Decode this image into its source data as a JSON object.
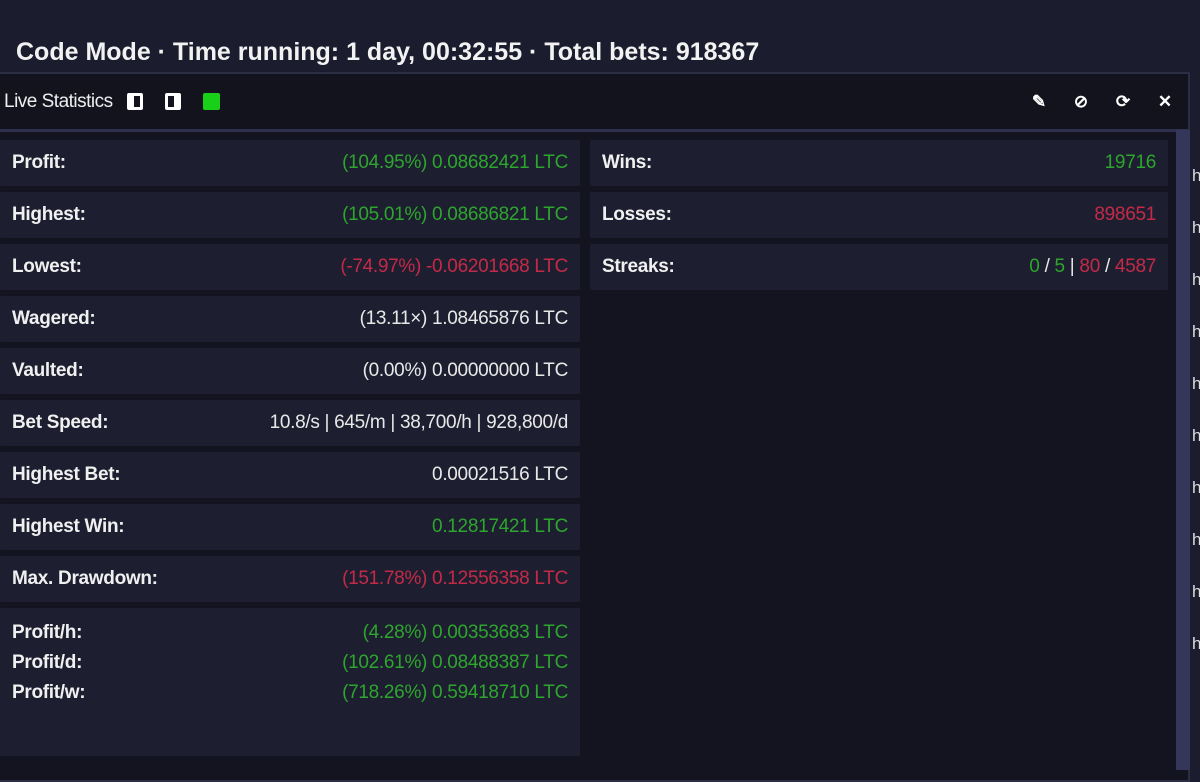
{
  "header": {
    "title": "Code Mode · Time running: 1 day, 00:32:55 · Total bets: 918367"
  },
  "panel": {
    "title": "Live Statistics",
    "status_color": "#19d019",
    "actions": [
      "edit-icon",
      "hide-icon",
      "refresh-icon",
      "close-icon"
    ]
  },
  "left": [
    {
      "label": "Profit:",
      "value": "(104.95%) 0.08682421 LTC",
      "color": "green"
    },
    {
      "label": "Highest:",
      "value": "(105.01%) 0.08686821 LTC",
      "color": "green"
    },
    {
      "label": "Lowest:",
      "value": "(-74.97%) -0.06201668 LTC",
      "color": "red"
    },
    {
      "label": "Wagered:",
      "value": "(13.11×) 1.08465876 LTC",
      "color": "white"
    },
    {
      "label": "Vaulted:",
      "value": "(0.00%) 0.00000000 LTC",
      "color": "white"
    },
    {
      "label": "Bet Speed:",
      "value": "10.8/s | 645/m | 38,700/h | 928,800/d",
      "color": "white"
    },
    {
      "label": "Highest Bet:",
      "value": "0.00021516 LTC",
      "color": "white"
    },
    {
      "label": "Highest Win:",
      "value": "0.12817421 LTC",
      "color": "green"
    },
    {
      "label": "Max. Drawdown:",
      "value": "(151.78%) 0.12556358 LTC",
      "color": "red"
    }
  ],
  "profit_rates": [
    {
      "label": "Profit/h:",
      "value": "(4.28%) 0.00353683 LTC"
    },
    {
      "label": "Profit/d:",
      "value": "(102.61%) 0.08488387 LTC"
    },
    {
      "label": "Profit/w:",
      "value": "(718.26%) 0.59418710 LTC"
    }
  ],
  "right": {
    "wins": {
      "label": "Wins:",
      "value": "19716"
    },
    "losses": {
      "label": "Losses:",
      "value": "898651"
    },
    "streaks": {
      "label": "Streaks:",
      "win_current": "0",
      "win_max": "5",
      "loss_current": "80",
      "loss_max": "4587",
      "sep1": "/",
      "sep2": "|",
      "sep3": "/"
    }
  },
  "side_letters": [
    "h",
    "h",
    "h",
    "h",
    "h",
    "h",
    "h",
    "h",
    "h",
    "h"
  ],
  "colors": {
    "green": "#2ea52e",
    "red": "#c42a48",
    "background": "#1b1c2e"
  }
}
